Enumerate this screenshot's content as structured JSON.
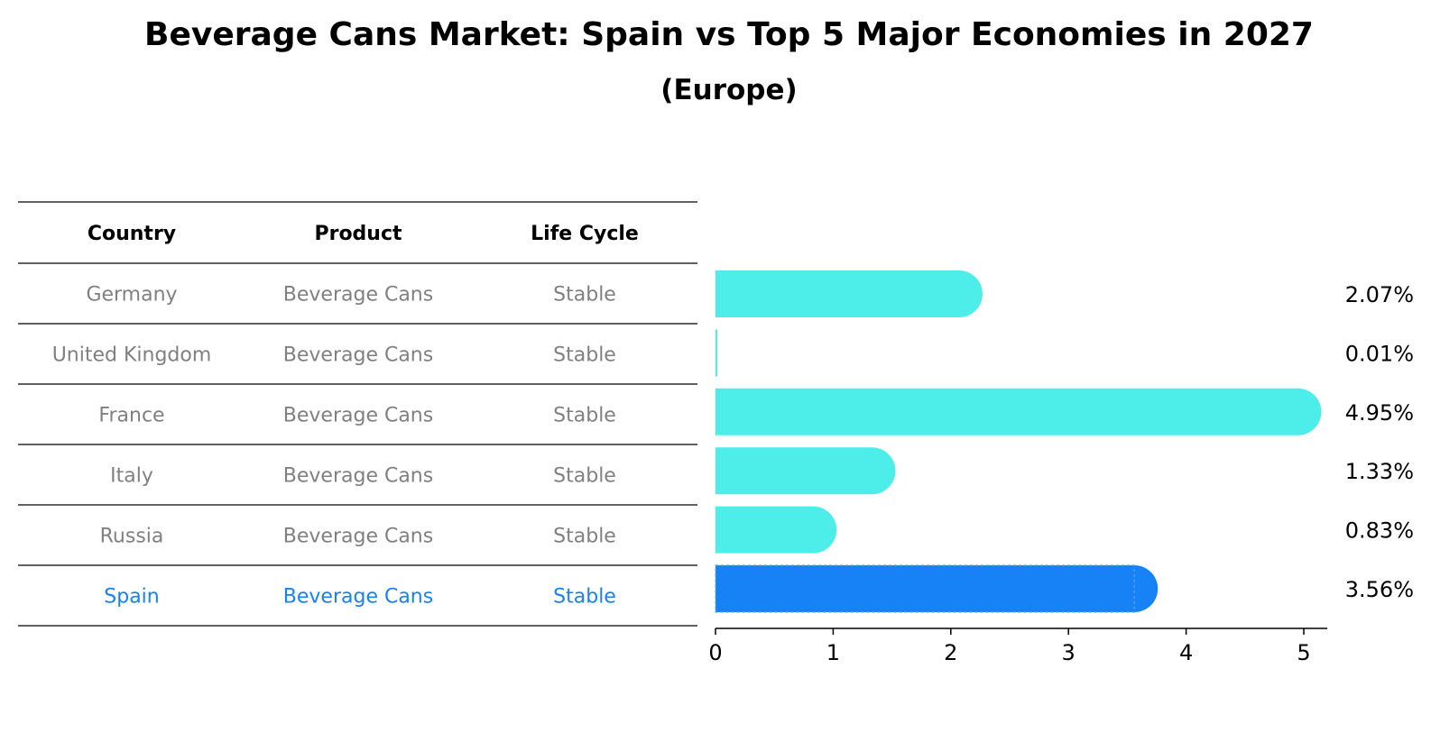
{
  "title": "Beverage Cans Market: Spain vs Top 5 Major Economies in 2027",
  "subtitle": "(Europe)",
  "colors": {
    "bar": "#4DEEEA",
    "highlight": "#1682F5",
    "muted_text": "#808080",
    "text": "#000000",
    "rule": "#000000"
  },
  "table": {
    "headers": [
      "Country",
      "Product",
      "Life Cycle"
    ],
    "rows": [
      [
        "Germany",
        "Beverage Cans",
        "Stable"
      ],
      [
        "United Kingdom",
        "Beverage Cans",
        "Stable"
      ],
      [
        "France",
        "Beverage Cans",
        "Stable"
      ],
      [
        "Italy",
        "Beverage Cans",
        "Stable"
      ],
      [
        "Russia",
        "Beverage Cans",
        "Stable"
      ],
      [
        "Spain",
        "Beverage Cans",
        "Stable"
      ]
    ],
    "highlight_row": 5
  },
  "chart_data": {
    "type": "bar",
    "orientation": "horizontal",
    "categories": [
      "Germany",
      "United Kingdom",
      "France",
      "Italy",
      "Russia",
      "Spain"
    ],
    "values": [
      2.07,
      0.01,
      4.95,
      1.33,
      0.83,
      3.56
    ],
    "value_labels": [
      "2.07%",
      "0.01%",
      "4.95%",
      "1.33%",
      "0.83%",
      "3.56%"
    ],
    "highlight_category": "Spain",
    "xlim": [
      0,
      5.2
    ],
    "xticks": [
      0,
      1,
      2,
      3,
      4,
      5
    ],
    "grid": false
  }
}
